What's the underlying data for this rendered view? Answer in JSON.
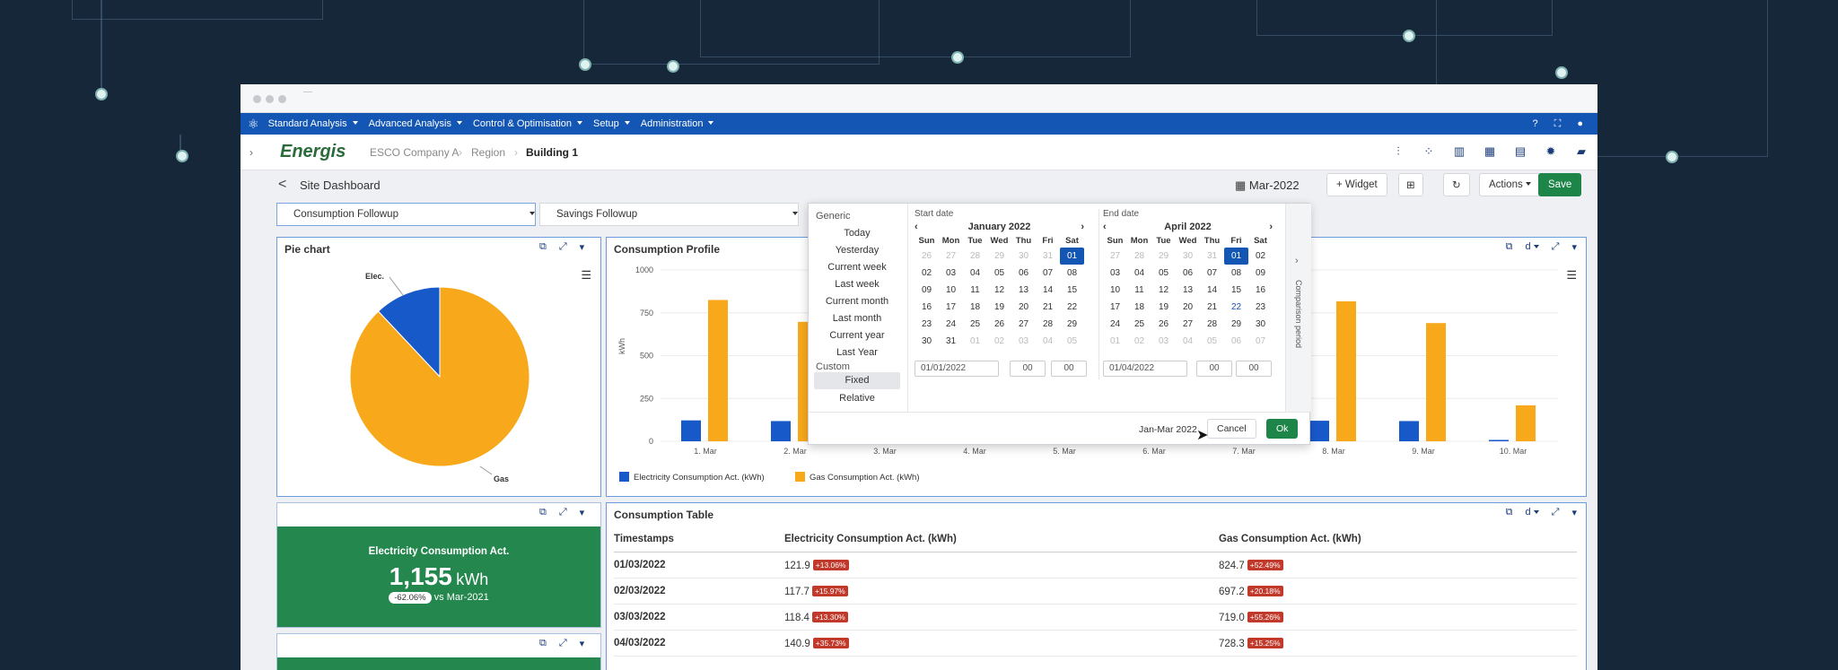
{
  "nav": {
    "items": [
      "Standard Analysis",
      "Advanced Analysis",
      "Control & Optimisation",
      "Setup",
      "Administration"
    ]
  },
  "breadcrumb": {
    "logo": "Energis",
    "items": [
      "ESCO Company A",
      "Region",
      "Building 1"
    ]
  },
  "subheader": {
    "back": "<",
    "title": "Site Dashboard",
    "period": "Mar-2022",
    "widget": "+ Widget",
    "actions": "Actions",
    "save": "Save"
  },
  "tabs": [
    "Consumption Followup",
    "Savings Followup"
  ],
  "pie": {
    "title": "Pie chart",
    "labels": [
      "Elec.",
      "Gas"
    ]
  },
  "chart_data": [
    {
      "type": "pie",
      "title": "Pie chart",
      "categories": [
        "Elec.",
        "Gas"
      ],
      "values": [
        12,
        88
      ],
      "colors": [
        "#1859c9",
        "#f7a81b"
      ]
    },
    {
      "type": "bar",
      "title": "Consumption Profile",
      "ylabel": "kWh",
      "ylim": [
        0,
        1000
      ],
      "yticks": [
        0,
        250,
        500,
        750,
        1000
      ],
      "categories": [
        "1. Mar",
        "2. Mar",
        "3. Mar",
        "4. Mar",
        "5. Mar",
        "6. Mar",
        "7. Mar",
        "8. Mar",
        "9. Mar",
        "10. Mar"
      ],
      "series": [
        {
          "name": "Electricity Consumption Act. (kWh)",
          "color": "#1859c9",
          "values": [
            122,
            118,
            118,
            141,
            0,
            0,
            0,
            120,
            118,
            8
          ]
        },
        {
          "name": "Gas Consumption Act. (kWh)",
          "color": "#f7a81b",
          "values": [
            825,
            697,
            719,
            728,
            0,
            0,
            0,
            817,
            690,
            210
          ]
        }
      ]
    }
  ],
  "kpi": {
    "label": "Electricity Consumption Act.",
    "value": "1,155",
    "unit": "kWh",
    "delta": "-62.06%",
    "vs": "vs Mar-2021"
  },
  "profile": {
    "title": "Consumption Profile",
    "ylabel": "kWh",
    "d": "d"
  },
  "table": {
    "title": "Consumption Table",
    "headers": [
      "Timestamps",
      "Electricity Consumption Act. (kWh)",
      "Gas Consumption Act. (kWh)"
    ],
    "rows": [
      {
        "ts": "01/03/2022",
        "e": "121.9",
        "eb": "+13.06%",
        "g": "824.7",
        "gb": "+52.49%"
      },
      {
        "ts": "02/03/2022",
        "e": "117.7",
        "eb": "+15.97%",
        "g": "697.2",
        "gb": "+20.18%"
      },
      {
        "ts": "03/03/2022",
        "e": "118.4",
        "eb": "+13.30%",
        "g": "719.0",
        "gb": "+55.26%"
      },
      {
        "ts": "04/03/2022",
        "e": "140.9",
        "eb": "+35.73%",
        "g": "728.3",
        "gb": "+15.25%"
      }
    ]
  },
  "picker": {
    "generic_title": "Generic",
    "generic": [
      "Today",
      "Yesterday",
      "Current week",
      "Last week",
      "Current month",
      "Last month",
      "Current year",
      "Last Year"
    ],
    "custom_title": "Custom",
    "custom": [
      "Fixed",
      "Relative"
    ],
    "start_label": "Start date",
    "start_month": "January 2022",
    "end_label": "End date",
    "end_month": "April 2022",
    "dow": [
      "Sun",
      "Mon",
      "Tue",
      "Wed",
      "Thu",
      "Fri",
      "Sat"
    ],
    "start_date": "01/01/2022",
    "end_date": "01/04/2022",
    "hh": "00",
    "mm": "00",
    "comparison": "Comparison period",
    "summary": "Jan-Mar 2022",
    "cancel": "Cancel",
    "ok": "Ok",
    "jan": [
      [
        "26",
        "27",
        "28",
        "29",
        "30",
        "31",
        "01"
      ],
      [
        "02",
        "03",
        "04",
        "05",
        "06",
        "07",
        "08"
      ],
      [
        "09",
        "10",
        "11",
        "12",
        "13",
        "14",
        "15"
      ],
      [
        "16",
        "17",
        "18",
        "19",
        "20",
        "21",
        "22"
      ],
      [
        "23",
        "24",
        "25",
        "26",
        "27",
        "28",
        "29"
      ],
      [
        "30",
        "31",
        "01",
        "02",
        "03",
        "04",
        "05"
      ]
    ],
    "apr": [
      [
        "27",
        "28",
        "29",
        "30",
        "31",
        "01",
        "02"
      ],
      [
        "03",
        "04",
        "05",
        "06",
        "07",
        "08",
        "09"
      ],
      [
        "10",
        "11",
        "12",
        "13",
        "14",
        "15",
        "16"
      ],
      [
        "17",
        "18",
        "19",
        "20",
        "21",
        "22",
        "23"
      ],
      [
        "24",
        "25",
        "26",
        "27",
        "28",
        "29",
        "30"
      ],
      [
        "01",
        "02",
        "03",
        "04",
        "05",
        "06",
        "07"
      ]
    ]
  }
}
